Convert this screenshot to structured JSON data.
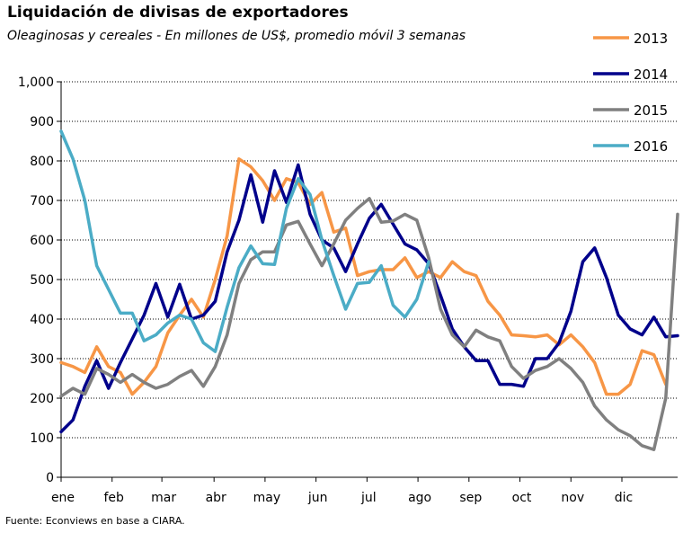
{
  "title": "Liquidación de divisas de exportadores",
  "subtitle": "Oleaginosas y cereales - En millones de US$, promedio móvil 3 semanas",
  "source": "Fuente: Econviews en base a CIARA.",
  "chart_data": {
    "type": "line",
    "title": "Liquidación de divisas de exportadores",
    "subtitle": "Oleaginosas y cereales - En millones de US$, promedio móvil 3 semanas",
    "xlabel": "",
    "ylabel": "",
    "ylim": [
      0,
      1000
    ],
    "yticks": [
      0,
      100,
      200,
      300,
      400,
      500,
      600,
      700,
      800,
      900,
      1000
    ],
    "ytick_labels": [
      "0",
      "100",
      "200",
      "300",
      "400",
      "500",
      "600",
      "700",
      "800",
      "900",
      "1,000"
    ],
    "xlim": [
      0,
      52
    ],
    "x_tick_labels": [
      "ene",
      "feb",
      "mar",
      "abr",
      "may",
      "jun",
      "jul",
      "ago",
      "sep",
      "oct",
      "nov",
      "dic"
    ],
    "x_tick_positions": [
      0,
      4.3,
      8.5,
      12.9,
      17.2,
      21.5,
      25.8,
      30.1,
      34.4,
      38.7,
      43,
      47.3
    ],
    "grid": "horizontal",
    "legend": "top-right",
    "series": [
      {
        "name": "2013",
        "color": "#F79646",
        "values": [
          290,
          280,
          265,
          330,
          280,
          265,
          210,
          240,
          280,
          365,
          410,
          450,
          405,
          500,
          610,
          805,
          785,
          750,
          700,
          755,
          745,
          690,
          720,
          620,
          630,
          510,
          520,
          525,
          525,
          555,
          505,
          520,
          505,
          545,
          520,
          510,
          445,
          410,
          360,
          358,
          355,
          360,
          335,
          360,
          330,
          290,
          210,
          210,
          235,
          320,
          310,
          235
        ]
      },
      {
        "name": "2014",
        "color": "#00008B",
        "values": [
          115,
          145,
          230,
          295,
          225,
          290,
          350,
          410,
          490,
          405,
          488,
          400,
          410,
          445,
          570,
          650,
          765,
          645,
          775,
          695,
          790,
          665,
          600,
          580,
          520,
          590,
          655,
          690,
          640,
          590,
          575,
          540,
          460,
          375,
          330,
          295,
          295,
          235,
          235,
          230,
          300,
          300,
          340,
          420,
          545,
          580,
          505,
          410,
          375,
          360,
          405,
          355,
          358
        ]
      },
      {
        "name": "2015",
        "color": "#808080",
        "values": [
          205,
          225,
          210,
          275,
          260,
          240,
          260,
          240,
          225,
          235,
          255,
          270,
          230,
          280,
          360,
          490,
          550,
          570,
          570,
          638,
          647,
          590,
          535,
          590,
          650,
          680,
          705,
          645,
          648,
          665,
          650,
          555,
          425,
          360,
          330,
          372,
          355,
          345,
          280,
          250,
          270,
          280,
          300,
          275,
          240,
          180,
          145,
          120,
          105,
          80,
          70,
          200,
          665
        ]
      },
      {
        "name": "2016",
        "color": "#4BACC6",
        "values": [
          875,
          805,
          700,
          535,
          475,
          415,
          415,
          345,
          360,
          390,
          410,
          400,
          340,
          318,
          430,
          530,
          585,
          540,
          538,
          680,
          755,
          715,
          600,
          510,
          425,
          490,
          493,
          535,
          435,
          405,
          450,
          545
        ]
      }
    ]
  }
}
